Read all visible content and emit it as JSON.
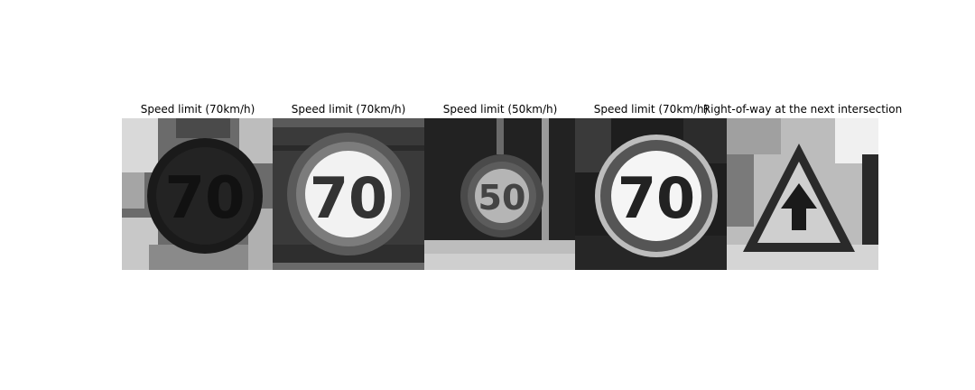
{
  "panels": [
    {
      "title": "Speed limit (70km/h)",
      "sign_text": "70"
    },
    {
      "title": "Speed limit (70km/h)",
      "sign_text": "70"
    },
    {
      "title": "Speed limit (50km/h)",
      "sign_text": "50"
    },
    {
      "title": "Speed limit (70km/h)",
      "sign_text": "70"
    },
    {
      "title": "Right-of-way at the next intersection",
      "sign_text": ""
    }
  ]
}
